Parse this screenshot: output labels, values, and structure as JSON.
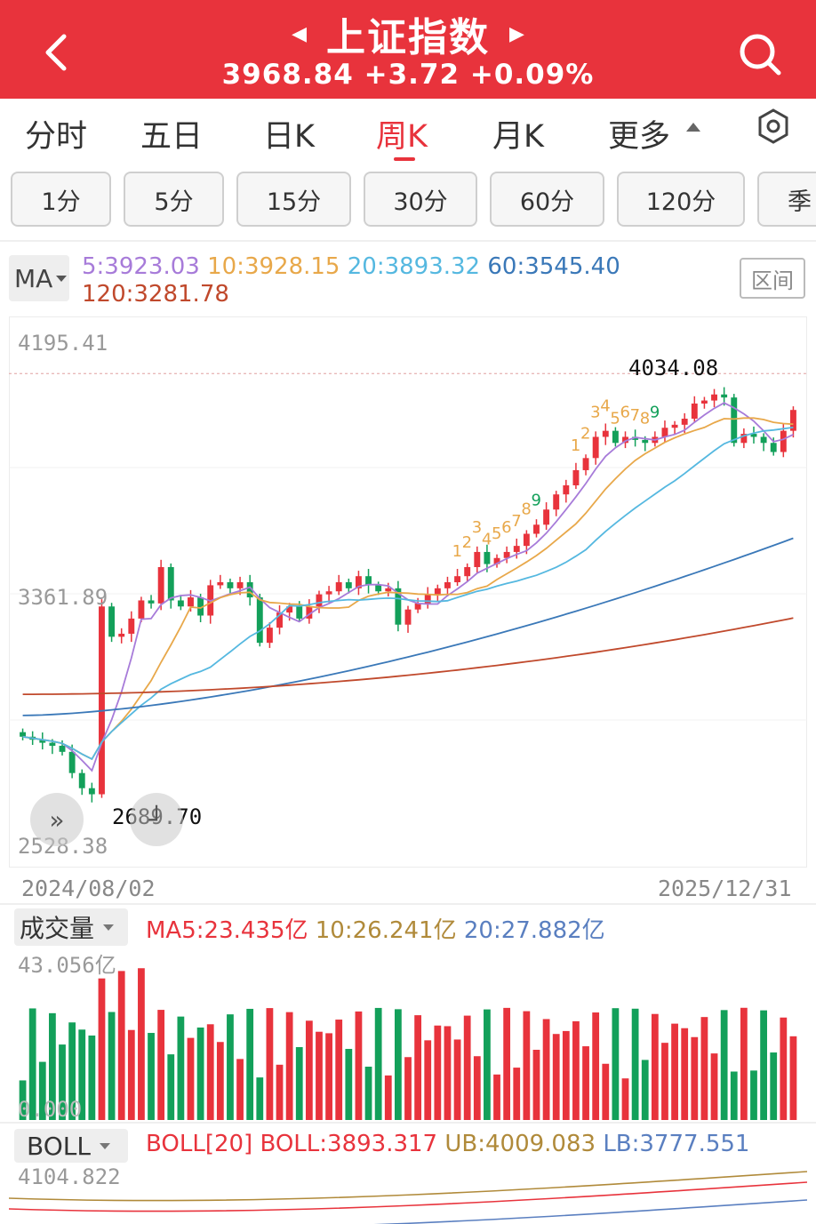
{
  "header": {
    "title": "上证指数",
    "quote": "3968.84 +3.72 +0.09%",
    "bg_color": "#e8333c"
  },
  "tabs": [
    {
      "label": "分时"
    },
    {
      "label": "五日"
    },
    {
      "label": "日K"
    },
    {
      "label": "周K",
      "active": true
    },
    {
      "label": "月K"
    },
    {
      "label": "更多"
    }
  ],
  "chips": [
    {
      "label": "1分"
    },
    {
      "label": "5分"
    },
    {
      "label": "15分"
    },
    {
      "label": "30分"
    },
    {
      "label": "60分"
    },
    {
      "label": "120分"
    },
    {
      "label": "季"
    }
  ],
  "ma_panel": {
    "selector": "MA",
    "ma5": "5:3923.03",
    "ma10": "10:3928.15",
    "ma20": "20:3893.32",
    "ma60": "60:3545.40",
    "ma120": "120:3281.78",
    "range_label": "区间",
    "colors": {
      "ma5": "#a77bd9",
      "ma10": "#e8a84a",
      "ma20": "#55b8e0",
      "ma60": "#3a78b8",
      "ma120": "#c0492c"
    }
  },
  "kline": {
    "y_max_label": "4195.41",
    "y_mid_label": "3361.89",
    "y_min_label": "2528.38",
    "high_label": "4034.08",
    "low_label": "2689.70",
    "start_date": "2024/08/02",
    "end_date": "2025/12/31",
    "up_color": "#e8333c",
    "down_color": "#13a05a",
    "countdown_labels": [
      "1",
      "2",
      "3",
      "4",
      "5",
      "6",
      "7",
      "8",
      "9",
      "1",
      "2",
      "3",
      "4",
      "5",
      "6",
      "7",
      "8",
      "9"
    ]
  },
  "volume": {
    "selector": "成交量",
    "ma5": "MA5:23.435亿",
    "ma10": "10:26.241亿",
    "ma20": "20:27.882亿",
    "max_label": "43.056亿",
    "min_label": "0.000"
  },
  "boll": {
    "selector": "BOLL",
    "name": "BOLL[20]",
    "mid": "BOLL:3893.317",
    "ub": "UB:4009.083",
    "lb": "LB:3777.551",
    "max_label": "4104.822"
  },
  "chart_data": {
    "type": "candlestick",
    "title": "上证指数",
    "x_range": [
      "2024/08/02",
      "2025/12/31"
    ],
    "ylim": [
      2528.38,
      4195.41
    ],
    "closes": [
      2890,
      2880,
      2870,
      2860,
      2840,
      2770,
      2720,
      2700,
      3320,
      3220,
      3230,
      3280,
      3340,
      3330,
      3450,
      3340,
      3320,
      3350,
      3290,
      3390,
      3400,
      3380,
      3400,
      3350,
      3200,
      3250,
      3300,
      3320,
      3280,
      3320,
      3360,
      3370,
      3400,
      3380,
      3420,
      3390,
      3370,
      3380,
      3260,
      3310,
      3330,
      3360,
      3380,
      3400,
      3420,
      3450,
      3500,
      3460,
      3480,
      3500,
      3520,
      3560,
      3590,
      3640,
      3690,
      3720,
      3770,
      3810,
      3880,
      3900,
      3860,
      3880,
      3870,
      3860,
      3880,
      3910,
      3920,
      3940,
      3990,
      4000,
      4020,
      4010,
      3860,
      3890,
      3880,
      3860,
      3830,
      3900,
      3968.84
    ],
    "annotations": {
      "high": 4034.08,
      "low": 2689.7
    }
  }
}
